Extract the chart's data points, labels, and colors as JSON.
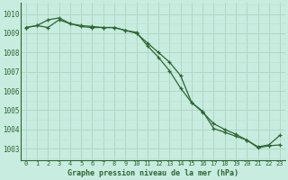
{
  "title": "Graphe pression niveau de la mer (hPa)",
  "background_color": "#c8ece0",
  "grid_major_color": "#b0d8c4",
  "grid_minor_color": "#c0e4d0",
  "line_color": "#2d6632",
  "ylim": [
    1002.4,
    1010.6
  ],
  "xlim": [
    -0.5,
    23.5
  ],
  "yticks": [
    1003,
    1004,
    1005,
    1006,
    1007,
    1008,
    1009,
    1010
  ],
  "xticks": [
    0,
    1,
    2,
    3,
    4,
    5,
    6,
    7,
    8,
    9,
    10,
    11,
    12,
    13,
    14,
    15,
    16,
    17,
    18,
    19,
    20,
    21,
    22,
    23
  ],
  "series1": [
    1009.3,
    1009.4,
    1009.3,
    1009.7,
    1009.5,
    1009.35,
    1009.3,
    1009.3,
    1009.3,
    1009.15,
    1009.05,
    1008.35,
    1007.75,
    1007.05,
    1006.15,
    1005.4,
    1004.95,
    1004.05,
    1003.85,
    1003.65,
    1003.45,
    1003.05,
    1003.15,
    1003.2
  ],
  "series2": [
    1009.3,
    1009.4,
    1009.7,
    1009.8,
    1009.5,
    1009.4,
    1009.35,
    1009.3,
    1009.3,
    1009.15,
    1009.0,
    1008.5,
    1008.0,
    1007.5,
    1006.8,
    1005.4,
    1004.9,
    1004.3,
    1004.0,
    1003.75,
    1003.45,
    1003.1,
    1003.2,
    1003.7
  ]
}
